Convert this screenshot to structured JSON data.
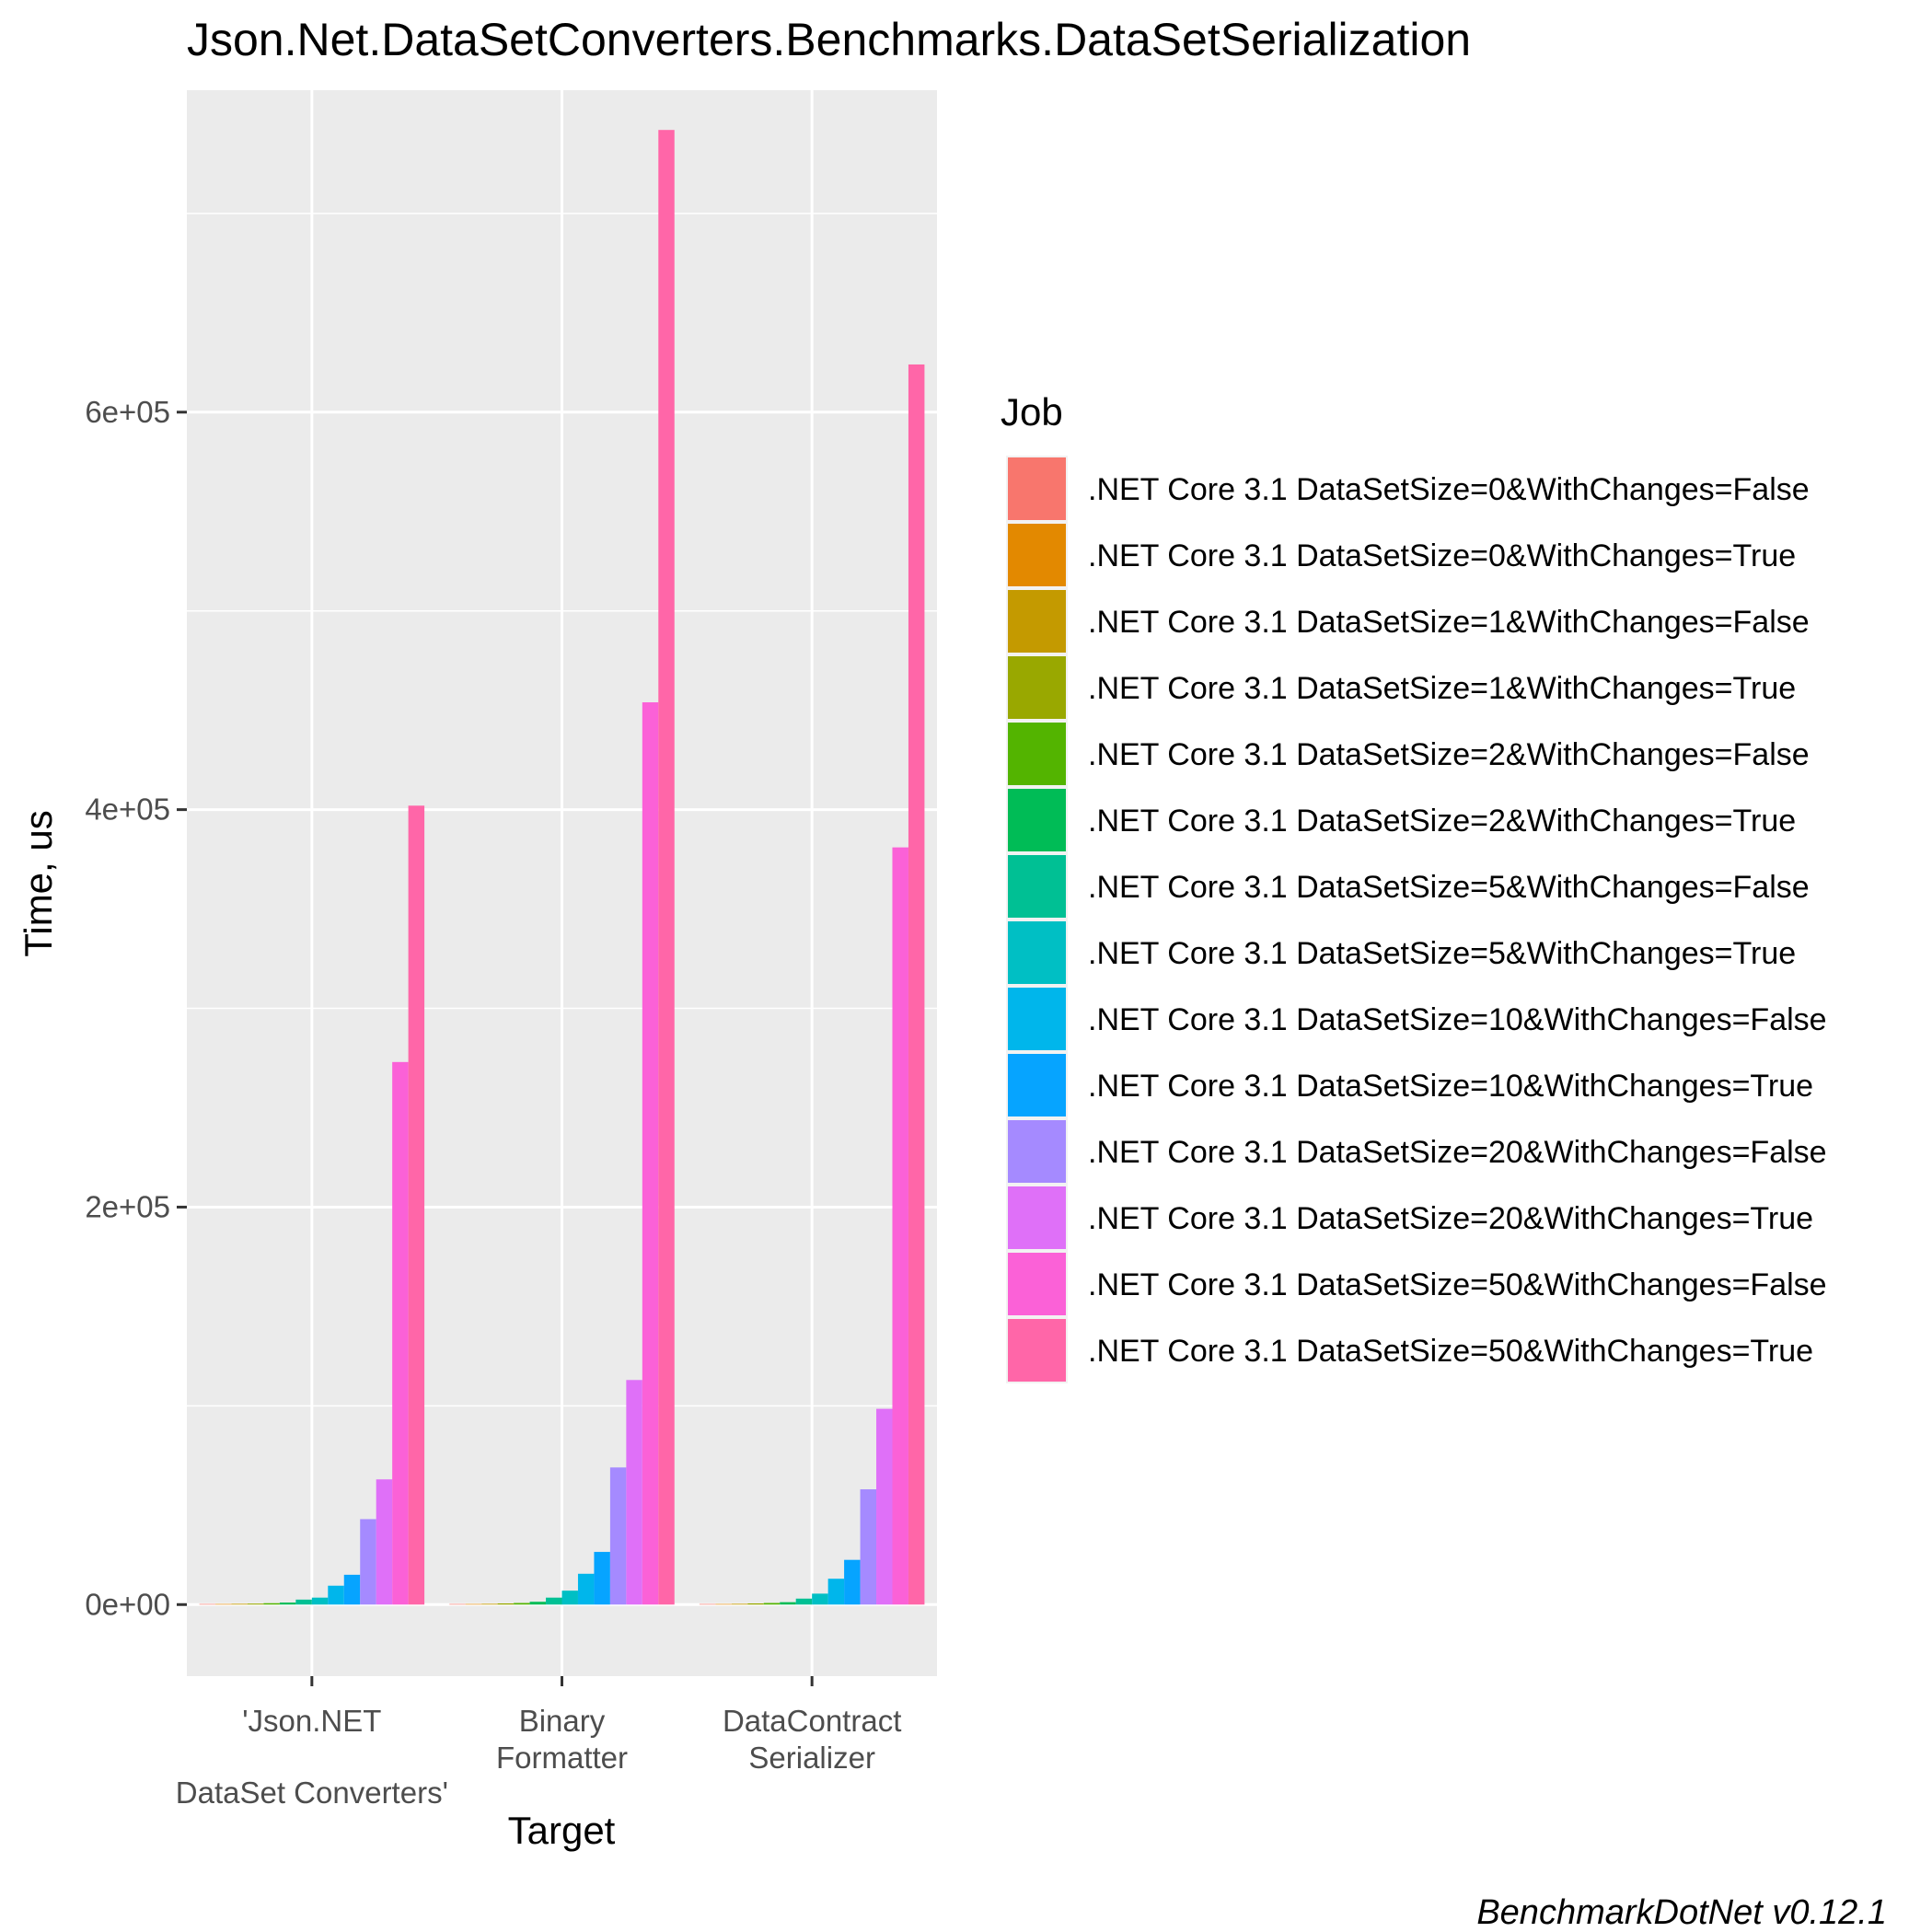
{
  "chart_data": {
    "type": "bar",
    "title": "Json.Net.DataSetConverters.Benchmarks.DataSetSerialization",
    "xlabel": "Target",
    "ylabel": "Time, us",
    "caption": "BenchmarkDotNet v0.12.1",
    "ylim": [
      -36000,
      762000
    ],
    "yticks": [
      0,
      200000,
      400000,
      600000
    ],
    "ytick_labels": [
      "0e+00",
      "2e+05",
      "4e+05",
      "6e+05"
    ],
    "grid": true,
    "legend_title": "Job",
    "legend_position": "right",
    "categories": [
      [
        "'Json.NET",
        "DataSet Converters'"
      ],
      [
        "Binary",
        "Formatter"
      ],
      [
        "DataContract",
        "Serializer"
      ]
    ],
    "series": [
      {
        "name": ".NET Core 3.1 DataSetSize=0&WithChanges=False",
        "color": "#F8766D",
        "values": [
          300,
          300,
          300
        ]
      },
      {
        "name": ".NET Core 3.1 DataSetSize=0&WithChanges=True",
        "color": "#E38900",
        "values": [
          300,
          300,
          300
        ]
      },
      {
        "name": ".NET Core 3.1 DataSetSize=1&WithChanges=False",
        "color": "#C49A00",
        "values": [
          400,
          400,
          400
        ]
      },
      {
        "name": ".NET Core 3.1 DataSetSize=1&WithChanges=True",
        "color": "#99A800",
        "values": [
          500,
          600,
          600
        ]
      },
      {
        "name": ".NET Core 3.1 DataSetSize=2&WithChanges=False",
        "color": "#53B400",
        "values": [
          700,
          800,
          800
        ]
      },
      {
        "name": ".NET Core 3.1 DataSetSize=2&WithChanges=True",
        "color": "#00BC56",
        "values": [
          1000,
          1400,
          1200
        ]
      },
      {
        "name": ".NET Core 3.1 DataSetSize=5&WithChanges=False",
        "color": "#00C094",
        "values": [
          2500,
          3500,
          3000
        ]
      },
      {
        "name": ".NET Core 3.1 DataSetSize=5&WithChanges=True",
        "color": "#00BFC4",
        "values": [
          3500,
          7000,
          5500
        ]
      },
      {
        "name": ".NET Core 3.1 DataSetSize=10&WithChanges=False",
        "color": "#00B6EB",
        "values": [
          9500,
          15500,
          13000
        ]
      },
      {
        "name": ".NET Core 3.1 DataSetSize=10&WithChanges=True",
        "color": "#06A4FF",
        "values": [
          15000,
          26500,
          22500
        ]
      },
      {
        "name": ".NET Core 3.1 DataSetSize=20&WithChanges=False",
        "color": "#A58AFF",
        "values": [
          43000,
          69000,
          58000
        ]
      },
      {
        "name": ".NET Core 3.1 DataSetSize=20&WithChanges=True",
        "color": "#DF70F8",
        "values": [
          63000,
          113000,
          98500
        ]
      },
      {
        "name": ".NET Core 3.1 DataSetSize=50&WithChanges=False",
        "color": "#FB61D7",
        "values": [
          273000,
          454000,
          381000
        ]
      },
      {
        "name": ".NET Core 3.1 DataSetSize=50&WithChanges=True",
        "color": "#FF66A8",
        "values": [
          402000,
          742000,
          624000
        ]
      }
    ]
  }
}
